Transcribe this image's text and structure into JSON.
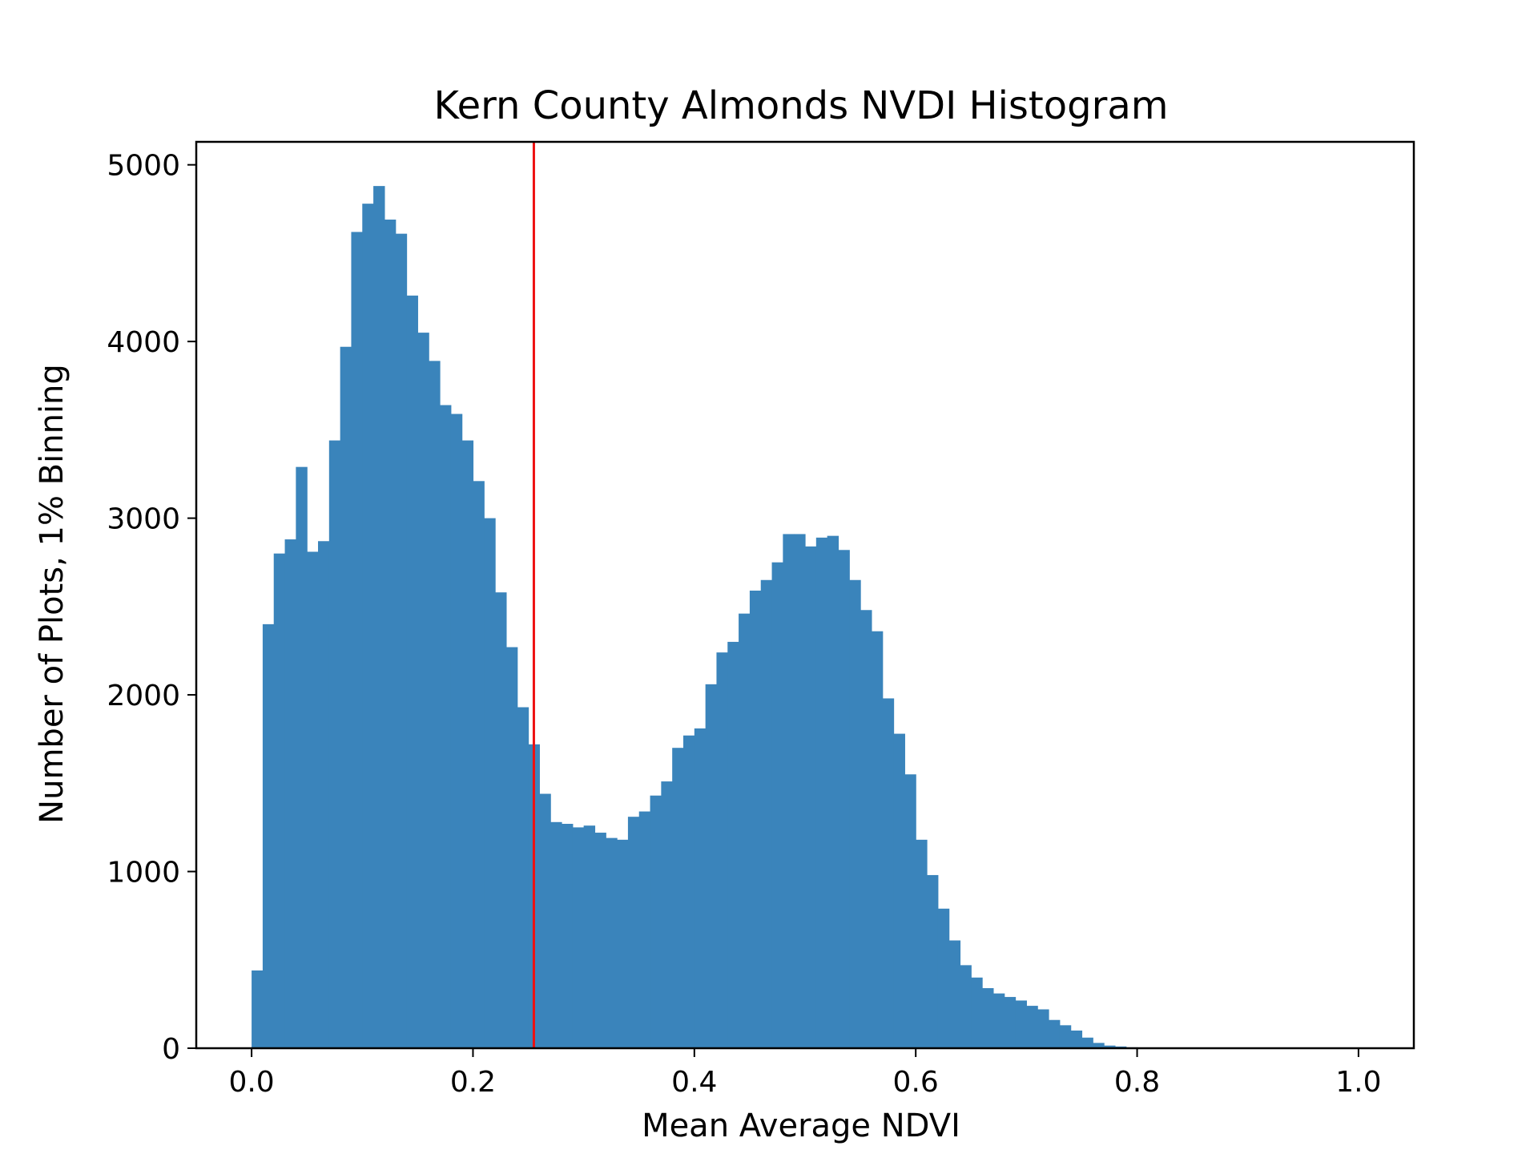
{
  "chart_data": {
    "type": "bar",
    "title": "Kern County Almonds NVDI Histogram",
    "xlabel": "Mean Average NDVI",
    "ylabel": "Number of Plots, 1% Binning",
    "xlim": [
      -0.05,
      1.05
    ],
    "ylim": [
      0,
      5130
    ],
    "xticks": [
      0.0,
      0.2,
      0.4,
      0.6,
      0.8,
      1.0
    ],
    "xtick_labels": [
      "0.0",
      "0.2",
      "0.4",
      "0.6",
      "0.8",
      "1.0"
    ],
    "yticks": [
      0,
      1000,
      2000,
      3000,
      4000,
      5000
    ],
    "ytick_labels": [
      "0",
      "1000",
      "2000",
      "3000",
      "4000",
      "5000"
    ],
    "bin_width": 0.01,
    "bin_starts": [
      0.0,
      0.01,
      0.02,
      0.03,
      0.04,
      0.05,
      0.06,
      0.07,
      0.08,
      0.09,
      0.1,
      0.11,
      0.12,
      0.13,
      0.14,
      0.15,
      0.16,
      0.17,
      0.18,
      0.19,
      0.2,
      0.21,
      0.22,
      0.23,
      0.24,
      0.25,
      0.26,
      0.27,
      0.28,
      0.29,
      0.3,
      0.31,
      0.32,
      0.33,
      0.34,
      0.35,
      0.36,
      0.37,
      0.38,
      0.39,
      0.4,
      0.41,
      0.42,
      0.43,
      0.44,
      0.45,
      0.46,
      0.47,
      0.48,
      0.49,
      0.5,
      0.51,
      0.52,
      0.53,
      0.54,
      0.55,
      0.56,
      0.57,
      0.58,
      0.59,
      0.6,
      0.61,
      0.62,
      0.63,
      0.64,
      0.65,
      0.66,
      0.67,
      0.68,
      0.69,
      0.7,
      0.71,
      0.72,
      0.73,
      0.74,
      0.75,
      0.76,
      0.77,
      0.78,
      0.79,
      0.8,
      0.81,
      0.82,
      0.83,
      0.84,
      0.85,
      0.86,
      0.87,
      0.88,
      0.89,
      0.9,
      0.91,
      0.92,
      0.93,
      0.94,
      0.95,
      0.96,
      0.97,
      0.98,
      0.99
    ],
    "values": [
      440,
      2400,
      2800,
      2880,
      3290,
      2810,
      2870,
      3440,
      3970,
      4620,
      4780,
      4880,
      4690,
      4610,
      4260,
      4050,
      3890,
      3640,
      3590,
      3440,
      3210,
      3000,
      2580,
      2270,
      1930,
      1720,
      1440,
      1280,
      1270,
      1250,
      1260,
      1220,
      1190,
      1180,
      1310,
      1340,
      1430,
      1510,
      1700,
      1770,
      1810,
      2060,
      2240,
      2300,
      2460,
      2590,
      2650,
      2750,
      2910,
      2910,
      2840,
      2890,
      2900,
      2820,
      2650,
      2480,
      2360,
      1980,
      1780,
      1550,
      1180,
      980,
      790,
      610,
      470,
      400,
      340,
      310,
      290,
      270,
      240,
      220,
      160,
      130,
      100,
      60,
      30,
      15,
      10,
      5,
      0,
      0,
      0,
      0,
      0,
      0,
      0,
      0,
      0,
      0,
      0,
      0,
      0,
      0,
      0,
      0,
      0,
      0,
      0,
      0
    ],
    "bar_color": "#3a84bb",
    "threshold_line": {
      "x": 0.255,
      "color": "#ee1111"
    },
    "grid": false,
    "legend": "none"
  }
}
